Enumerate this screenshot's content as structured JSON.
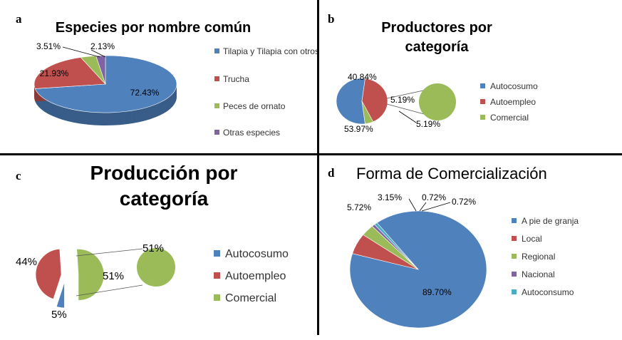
{
  "colors": {
    "blue": "#4f81bd",
    "red": "#c0504d",
    "green": "#9bbb59",
    "purple": "#8064a2",
    "cyan": "#4bacc6"
  },
  "chart_data": [
    {
      "letter": "a",
      "type": "pie",
      "title": "Especies por nombre común",
      "series": [
        {
          "name": "Tilapia y Tilapia con otros",
          "value": 72.43,
          "label": "72.43%",
          "color": "#4f81bd"
        },
        {
          "name": "Trucha",
          "value": 21.93,
          "label": "21.93%",
          "color": "#c0504d"
        },
        {
          "name": "Peces de ornato",
          "value": 3.51,
          "label": "3.51%",
          "color": "#9bbb59"
        },
        {
          "name": "Otras especies",
          "value": 2.13,
          "label": "2.13%",
          "color": "#8064a2"
        }
      ],
      "legend_position": "right"
    },
    {
      "letter": "b",
      "type": "pie",
      "title": "Productores por categoría",
      "series": [
        {
          "name": "Autocosumo",
          "value": 53.97,
          "label": "53.97%",
          "color": "#4f81bd"
        },
        {
          "name": "Autoempleo",
          "value": 40.84,
          "label": "40.84%",
          "color": "#c0504d"
        },
        {
          "name": "Comercial",
          "value": 5.19,
          "label": "5.19%",
          "color": "#9bbb59"
        }
      ],
      "extra_labels": [
        "5.19%",
        "5.19%"
      ],
      "legend_position": "right"
    },
    {
      "letter": "c",
      "type": "pie",
      "title": "Producción por categoría",
      "series": [
        {
          "name": "Autocosumo",
          "value": 5,
          "label": "5%",
          "color": "#4f81bd"
        },
        {
          "name": "Autoempleo",
          "value": 44,
          "label": "44%",
          "color": "#c0504d"
        },
        {
          "name": "Comercial",
          "value": 51,
          "label": "51%",
          "color": "#9bbb59"
        }
      ],
      "extra_labels": [
        "51%",
        "51%"
      ],
      "legend_position": "right"
    },
    {
      "letter": "d",
      "type": "pie",
      "title": "Forma de Comercialización",
      "series": [
        {
          "name": "A pie de granja",
          "value": 89.7,
          "label": "89.70%",
          "color": "#4f81bd"
        },
        {
          "name": "Local",
          "value": 5.72,
          "label": "5.72%",
          "color": "#c0504d"
        },
        {
          "name": "Regional",
          "value": 3.15,
          "label": "3.15%",
          "color": "#9bbb59"
        },
        {
          "name": "Nacional",
          "value": 0.72,
          "label": "0.72%",
          "color": "#8064a2"
        },
        {
          "name": "Autoconsumo",
          "value": 0.72,
          "label": "0.72%",
          "color": "#4bacc6"
        }
      ],
      "legend_position": "right"
    }
  ]
}
